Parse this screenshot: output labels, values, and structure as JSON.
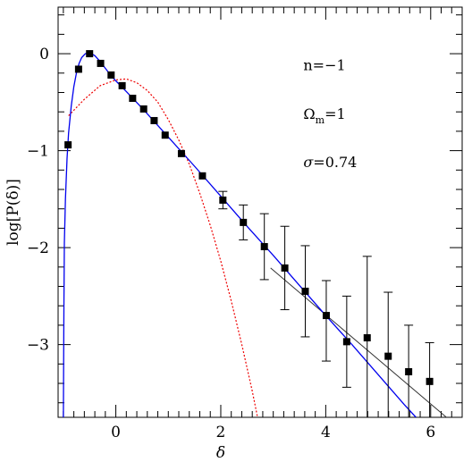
{
  "chart_data": {
    "type": "scatter",
    "xlabel": "δ",
    "ylabel": "log[P(δ)]",
    "xlim": [
      -1.1,
      6.6
    ],
    "ylim": [
      -3.75,
      0.48
    ],
    "x_ticks": [
      0,
      2,
      4,
      6
    ],
    "x_tick_labels": [
      "0",
      "2",
      "4",
      "6"
    ],
    "y_ticks": [
      0,
      -1,
      -2,
      -3
    ],
    "y_tick_labels": [
      "0",
      "−1",
      "−2",
      "−3"
    ],
    "annotations": [
      {
        "id": "n",
        "text": "n=−1",
        "x": 4.0,
        "y": -0.17
      },
      {
        "id": "omega",
        "text": "Ω",
        "sub": "m",
        "suffix": "=1",
        "x": 4.0,
        "y": -0.67
      },
      {
        "id": "sigma",
        "text": "σ=0.74",
        "x": 4.0,
        "y": -1.17
      }
    ],
    "points": [
      {
        "x": -0.91,
        "y": -0.94
      },
      {
        "x": -0.71,
        "y": -0.16
      },
      {
        "x": -0.5,
        "y": 0.0
      },
      {
        "x": -0.29,
        "y": -0.1
      },
      {
        "x": -0.09,
        "y": -0.22
      },
      {
        "x": 0.12,
        "y": -0.33
      },
      {
        "x": 0.32,
        "y": -0.46
      },
      {
        "x": 0.53,
        "y": -0.57
      },
      {
        "x": 0.73,
        "y": -0.69
      },
      {
        "x": 0.94,
        "y": -0.84
      },
      {
        "x": 1.25,
        "y": -1.03
      },
      {
        "x": 1.65,
        "y": -1.26
      },
      {
        "x": 2.04,
        "y": -1.51,
        "err_lo": 0.09,
        "err_hi": 0.09
      },
      {
        "x": 2.43,
        "y": -1.74,
        "err_lo": 0.18,
        "err_hi": 0.18
      },
      {
        "x": 2.83,
        "y": -1.99,
        "err_lo": 0.34,
        "err_hi": 0.34
      },
      {
        "x": 3.22,
        "y": -2.21,
        "err_lo": 0.43,
        "err_hi": 0.43
      },
      {
        "x": 3.61,
        "y": -2.45,
        "err_lo": 0.47,
        "err_hi": 0.47
      },
      {
        "x": 4.01,
        "y": -2.7,
        "err_lo": 0.47,
        "err_hi": 0.36
      },
      {
        "x": 4.4,
        "y": -2.97,
        "err_lo": 0.47,
        "err_hi": 0.47
      },
      {
        "x": 4.79,
        "y": -2.93,
        "err_lo": 0.84,
        "err_hi": 0.84
      },
      {
        "x": 5.19,
        "y": -3.12,
        "err_lo": 0.66,
        "err_hi": 0.66
      },
      {
        "x": 5.58,
        "y": -3.28,
        "err_lo": 0.48,
        "err_hi": 0.48
      },
      {
        "x": 5.98,
        "y": -3.38,
        "err_lo": 0.4,
        "err_hi": 0.4
      }
    ],
    "blue_curve": [
      [
        -1.0,
        -3.75
      ],
      [
        -0.99,
        -2.6
      ],
      [
        -0.98,
        -1.95
      ],
      [
        -0.96,
        -1.5
      ],
      [
        -0.93,
        -1.08
      ],
      [
        -0.9,
        -0.82
      ],
      [
        -0.85,
        -0.54
      ],
      [
        -0.8,
        -0.34
      ],
      [
        -0.75,
        -0.2
      ],
      [
        -0.7,
        -0.1
      ],
      [
        -0.65,
        -0.04
      ],
      [
        -0.58,
        0.0
      ],
      [
        -0.5,
        0.01
      ],
      [
        -0.4,
        -0.02
      ],
      [
        -0.3,
        -0.08
      ],
      [
        -0.2,
        -0.15
      ],
      [
        -0.1,
        -0.22
      ],
      [
        0.0,
        -0.28
      ],
      [
        0.2,
        -0.39
      ],
      [
        0.5,
        -0.56
      ],
      [
        1.0,
        -0.86
      ],
      [
        1.5,
        -1.16
      ],
      [
        2.0,
        -1.47
      ],
      [
        2.5,
        -1.78
      ],
      [
        3.0,
        -2.08
      ],
      [
        3.5,
        -2.39
      ],
      [
        4.0,
        -2.7
      ],
      [
        4.5,
        -3.0
      ],
      [
        5.0,
        -3.31
      ],
      [
        5.5,
        -3.62
      ],
      [
        5.72,
        -3.75
      ]
    ],
    "red_curve": [
      [
        -0.9,
        -0.64
      ],
      [
        -0.6,
        -0.47
      ],
      [
        -0.3,
        -0.33
      ],
      [
        0.0,
        -0.27
      ],
      [
        0.2,
        -0.26
      ],
      [
        0.4,
        -0.3
      ],
      [
        0.6,
        -0.38
      ],
      [
        0.8,
        -0.5
      ],
      [
        1.0,
        -0.68
      ],
      [
        1.2,
        -0.89
      ],
      [
        1.4,
        -1.14
      ],
      [
        1.6,
        -1.44
      ],
      [
        1.8,
        -1.77
      ],
      [
        2.0,
        -2.14
      ],
      [
        2.2,
        -2.55
      ],
      [
        2.4,
        -3.0
      ],
      [
        2.6,
        -3.48
      ],
      [
        2.7,
        -3.75
      ]
    ],
    "black_line": [
      [
        2.95,
        -2.21
      ],
      [
        6.3,
        -3.75
      ]
    ],
    "colors": {
      "blue_curve": "#0000ee",
      "red_curve": "#ee0000",
      "black_line": "#333333",
      "points": "#000000"
    }
  }
}
